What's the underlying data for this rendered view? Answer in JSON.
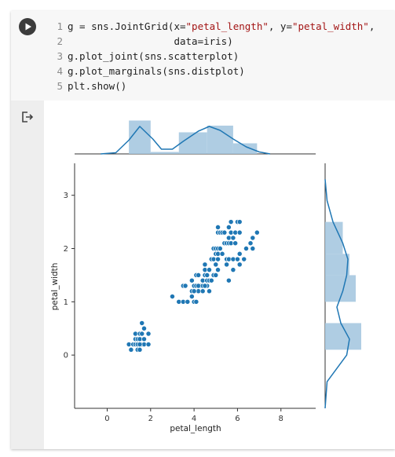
{
  "code_cell": {
    "lines": [
      {
        "number": "1",
        "segments": [
          {
            "text": "g = sns.JointGrid(x=",
            "kind": "plain"
          },
          {
            "text": "\"petal_length\"",
            "kind": "str"
          },
          {
            "text": ", y=",
            "kind": "plain"
          },
          {
            "text": "\"petal_width\"",
            "kind": "str"
          },
          {
            "text": ",",
            "kind": "plain"
          }
        ]
      },
      {
        "number": "2",
        "segments": [
          {
            "text": "                  data=iris)",
            "kind": "plain"
          }
        ]
      },
      {
        "number": "3",
        "segments": [
          {
            "text": "g.plot_joint(sns.scatterplot)",
            "kind": "plain"
          }
        ]
      },
      {
        "number": "4",
        "segments": [
          {
            "text": "g.plot_marginals(sns.distplot)",
            "kind": "plain"
          }
        ]
      },
      {
        "number": "5",
        "segments": [
          {
            "text": "plt.show()",
            "kind": "plain"
          }
        ]
      }
    ],
    "run_button_icon": "play-icon",
    "output_icon": "output-redirect-icon"
  },
  "colors": {
    "point": "#1f77b4",
    "hist_fill": "#a6c8e0",
    "kde_line": "#1f77b4",
    "string": "#a31515"
  },
  "chart_data": {
    "type": "scatter",
    "xlabel": "petal_length",
    "ylabel": "petal_width",
    "xlim": [
      -1.5,
      9.6
    ],
    "ylim": [
      -1.0,
      3.6
    ],
    "xticks": [
      0,
      2,
      4,
      6,
      8
    ],
    "yticks": [
      0,
      1,
      2,
      3
    ],
    "grid": false,
    "points": [
      [
        1.0,
        0.2
      ],
      [
        1.2,
        0.2
      ],
      [
        1.3,
        0.2
      ],
      [
        1.4,
        0.2
      ],
      [
        1.5,
        0.2
      ],
      [
        1.6,
        0.2
      ],
      [
        1.7,
        0.2
      ],
      [
        1.9,
        0.2
      ],
      [
        1.1,
        0.1
      ],
      [
        1.4,
        0.1
      ],
      [
        1.5,
        0.1
      ],
      [
        1.3,
        0.3
      ],
      [
        1.4,
        0.3
      ],
      [
        1.5,
        0.3
      ],
      [
        1.7,
        0.3
      ],
      [
        1.3,
        0.4
      ],
      [
        1.5,
        0.4
      ],
      [
        1.6,
        0.4
      ],
      [
        1.7,
        0.5
      ],
      [
        1.9,
        0.4
      ],
      [
        1.6,
        0.6
      ],
      [
        1.4,
        0.2
      ],
      [
        1.5,
        0.2
      ],
      [
        3.0,
        1.1
      ],
      [
        3.3,
        1.0
      ],
      [
        3.5,
        1.0
      ],
      [
        3.7,
        1.0
      ],
      [
        3.9,
        1.1
      ],
      [
        3.5,
        1.3
      ],
      [
        3.9,
        1.2
      ],
      [
        3.6,
        1.3
      ],
      [
        4.0,
        1.0
      ],
      [
        4.1,
        1.0
      ],
      [
        3.9,
        1.4
      ],
      [
        4.0,
        1.3
      ],
      [
        4.2,
        1.2
      ],
      [
        4.3,
        1.3
      ],
      [
        4.4,
        1.2
      ],
      [
        4.5,
        1.5
      ],
      [
        4.0,
        1.2
      ],
      [
        4.1,
        1.3
      ],
      [
        4.1,
        1.5
      ],
      [
        4.2,
        1.3
      ],
      [
        4.2,
        1.5
      ],
      [
        4.4,
        1.3
      ],
      [
        4.4,
        1.4
      ],
      [
        4.5,
        1.6
      ],
      [
        4.6,
        1.3
      ],
      [
        4.6,
        1.4
      ],
      [
        4.6,
        1.5
      ],
      [
        4.7,
        1.2
      ],
      [
        4.7,
        1.4
      ],
      [
        4.7,
        1.6
      ],
      [
        4.8,
        1.4
      ],
      [
        4.8,
        1.8
      ],
      [
        4.9,
        1.5
      ],
      [
        4.5,
        1.7
      ],
      [
        4.8,
        1.8
      ],
      [
        5.0,
        1.7
      ],
      [
        5.1,
        1.6
      ],
      [
        4.9,
        1.8
      ],
      [
        5.0,
        1.5
      ],
      [
        4.5,
        1.3
      ],
      [
        4.9,
        2.0
      ],
      [
        5.0,
        1.9
      ],
      [
        5.1,
        1.8
      ],
      [
        5.1,
        1.9
      ],
      [
        5.0,
        2.0
      ],
      [
        5.1,
        2.0
      ],
      [
        5.1,
        2.3
      ],
      [
        5.1,
        2.4
      ],
      [
        5.2,
        2.0
      ],
      [
        5.2,
        2.3
      ],
      [
        5.3,
        1.9
      ],
      [
        5.3,
        2.3
      ],
      [
        5.4,
        2.1
      ],
      [
        5.4,
        2.3
      ],
      [
        5.5,
        1.8
      ],
      [
        5.5,
        2.1
      ],
      [
        5.5,
        1.7
      ],
      [
        5.6,
        1.8
      ],
      [
        5.6,
        2.1
      ],
      [
        5.6,
        2.2
      ],
      [
        5.6,
        2.4
      ],
      [
        5.6,
        1.4
      ],
      [
        5.7,
        2.1
      ],
      [
        5.7,
        2.3
      ],
      [
        5.7,
        2.5
      ],
      [
        5.8,
        1.8
      ],
      [
        5.8,
        2.2
      ],
      [
        5.8,
        1.6
      ],
      [
        5.9,
        2.1
      ],
      [
        5.9,
        2.3
      ],
      [
        6.0,
        1.8
      ],
      [
        6.0,
        2.5
      ],
      [
        6.1,
        1.9
      ],
      [
        6.1,
        2.3
      ],
      [
        6.1,
        2.5
      ],
      [
        6.1,
        1.7
      ],
      [
        6.3,
        1.8
      ],
      [
        6.4,
        2.0
      ],
      [
        6.6,
        2.1
      ],
      [
        6.7,
        2.0
      ],
      [
        6.7,
        2.2
      ],
      [
        6.9,
        2.3
      ]
    ],
    "marginal_x": {
      "bins": [
        [
          1.0,
          2.0,
          0.85
        ],
        [
          2.0,
          3.3,
          0.05
        ],
        [
          3.3,
          4.6,
          0.55
        ],
        [
          4.6,
          5.8,
          0.72
        ],
        [
          5.8,
          6.9,
          0.27
        ]
      ],
      "kde": [
        [
          -0.3,
          0.0
        ],
        [
          0.4,
          0.03
        ],
        [
          1.0,
          0.35
        ],
        [
          1.5,
          0.7
        ],
        [
          2.1,
          0.38
        ],
        [
          2.5,
          0.12
        ],
        [
          3.0,
          0.12
        ],
        [
          3.5,
          0.32
        ],
        [
          4.2,
          0.58
        ],
        [
          4.7,
          0.7
        ],
        [
          5.2,
          0.6
        ],
        [
          5.8,
          0.38
        ],
        [
          6.4,
          0.18
        ],
        [
          7.0,
          0.05
        ],
        [
          7.5,
          0.0
        ]
      ]
    },
    "marginal_y": {
      "bins": [
        [
          -1.0,
          0.0,
          0.0
        ],
        [
          0.1,
          0.6,
          0.92
        ],
        [
          0.9,
          1.0,
          0.0
        ],
        [
          1.0,
          1.5,
          0.78
        ],
        [
          1.5,
          1.9,
          0.62
        ],
        [
          1.9,
          2.5,
          0.45
        ],
        [
          2.5,
          2.8,
          0.0
        ]
      ],
      "kde": [
        [
          -1.0,
          0.0
        ],
        [
          -0.5,
          0.05
        ],
        [
          0.0,
          0.55
        ],
        [
          0.3,
          0.62
        ],
        [
          0.6,
          0.4
        ],
        [
          0.9,
          0.3
        ],
        [
          1.2,
          0.45
        ],
        [
          1.5,
          0.55
        ],
        [
          1.8,
          0.58
        ],
        [
          2.1,
          0.45
        ],
        [
          2.5,
          0.2
        ],
        [
          2.9,
          0.05
        ],
        [
          3.3,
          0.0
        ]
      ]
    }
  }
}
